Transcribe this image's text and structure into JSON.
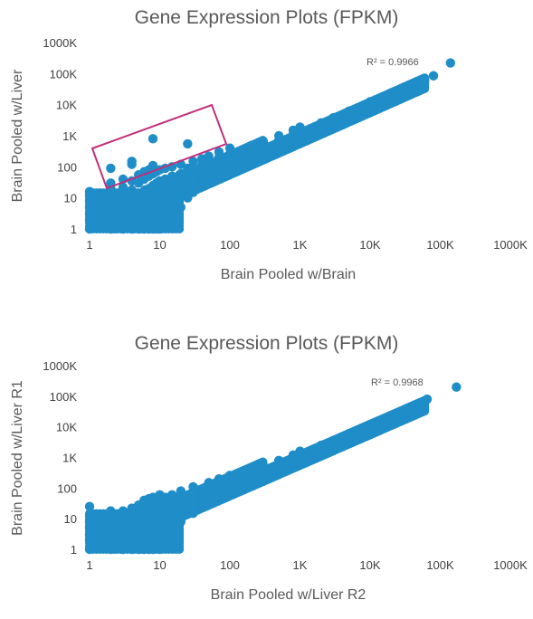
{
  "charts": [
    {
      "title": "Gene Expression Plots (FPKM)",
      "xlabel": "Brain Pooled  w/Brain",
      "ylabel": "Brain Pooled w/Liver",
      "r2_label": "R² = 0.9966",
      "x_ticks": [
        "1",
        "10",
        "100",
        "1K",
        "10K",
        "100K",
        "1000K"
      ],
      "y_ticks": [
        "1",
        "10",
        "100",
        "1K",
        "10K",
        "100K",
        "1000K"
      ]
    },
    {
      "title": "Gene Expression Plots (FPKM)",
      "xlabel": "Brain Pooled w/Liver R2",
      "ylabel": "Brain Pooled w/Liver R1",
      "r2_label": "R² = 0.9968",
      "x_ticks": [
        "1",
        "10",
        "100",
        "1K",
        "10K",
        "100K",
        "1000K"
      ],
      "y_ticks": [
        "1",
        "10",
        "100",
        "1K",
        "10K",
        "100K",
        "1000K"
      ]
    }
  ],
  "chart_data": [
    {
      "type": "scatter",
      "title": "Gene Expression Plots (FPKM)",
      "xlabel": "Brain Pooled  w/Brain",
      "ylabel": "Brain Pooled w/Liver",
      "x_scale": "log",
      "y_scale": "log",
      "xlim": [
        1,
        1000000
      ],
      "ylim": [
        1,
        1000000
      ],
      "grid": false,
      "legend": "none",
      "marker_color": "#1f8dc8",
      "annotation": "R² = 0.9966",
      "highlight_box_color": "#c0307a",
      "points": [
        [
          1,
          1
        ],
        [
          1,
          2
        ],
        [
          1,
          3
        ],
        [
          1,
          5
        ],
        [
          1,
          8
        ],
        [
          1,
          12
        ],
        [
          1,
          16
        ],
        [
          2,
          1
        ],
        [
          2,
          2
        ],
        [
          2,
          4
        ],
        [
          2,
          7
        ],
        [
          2,
          12
        ],
        [
          2,
          20
        ],
        [
          2,
          90
        ],
        [
          2,
          30
        ],
        [
          3,
          1
        ],
        [
          3,
          2
        ],
        [
          3,
          5
        ],
        [
          3,
          10
        ],
        [
          3,
          22
        ],
        [
          3,
          40
        ],
        [
          4,
          1
        ],
        [
          4,
          3
        ],
        [
          4,
          8
        ],
        [
          4,
          18
        ],
        [
          4,
          35
        ],
        [
          4,
          150
        ],
        [
          4,
          120
        ],
        [
          5,
          1
        ],
        [
          5,
          4
        ],
        [
          5,
          12
        ],
        [
          5,
          30
        ],
        [
          5,
          55
        ],
        [
          6,
          1
        ],
        [
          6,
          5
        ],
        [
          6,
          15
        ],
        [
          6,
          40
        ],
        [
          6,
          70
        ],
        [
          7,
          1
        ],
        [
          7,
          6
        ],
        [
          7,
          20
        ],
        [
          7,
          50
        ],
        [
          7,
          80
        ],
        [
          8,
          1
        ],
        [
          8,
          8
        ],
        [
          8,
          25
        ],
        [
          8,
          60
        ],
        [
          8,
          800
        ],
        [
          8,
          110
        ],
        [
          9,
          1
        ],
        [
          9,
          10
        ],
        [
          9,
          30
        ],
        [
          9,
          70
        ],
        [
          10,
          1
        ],
        [
          10,
          12
        ],
        [
          10,
          35
        ],
        [
          10,
          80
        ],
        [
          12,
          2
        ],
        [
          12,
          15
        ],
        [
          12,
          40
        ],
        [
          12,
          90
        ],
        [
          15,
          3
        ],
        [
          15,
          20
        ],
        [
          15,
          50
        ],
        [
          15,
          100
        ],
        [
          20,
          5
        ],
        [
          20,
          25
        ],
        [
          20,
          60
        ],
        [
          20,
          120
        ],
        [
          25,
          550
        ],
        [
          25,
          10
        ],
        [
          25,
          35
        ],
        [
          25,
          90
        ],
        [
          30,
          15
        ],
        [
          30,
          40
        ],
        [
          30,
          100
        ],
        [
          30,
          150
        ],
        [
          40,
          25
        ],
        [
          40,
          60
        ],
        [
          40,
          120
        ],
        [
          40,
          180
        ],
        [
          50,
          35
        ],
        [
          50,
          80
        ],
        [
          50,
          150
        ],
        [
          50,
          220
        ],
        [
          70,
          60
        ],
        [
          70,
          110
        ],
        [
          70,
          200
        ],
        [
          70,
          300
        ],
        [
          100,
          90
        ],
        [
          100,
          150
        ],
        [
          100,
          260
        ],
        [
          100,
          400
        ],
        [
          150,
          140
        ],
        [
          150,
          220
        ],
        [
          150,
          350
        ],
        [
          200,
          190
        ],
        [
          200,
          280
        ],
        [
          200,
          480
        ],
        [
          300,
          300
        ],
        [
          300,
          420
        ],
        [
          300,
          650
        ],
        [
          500,
          480
        ],
        [
          500,
          700
        ],
        [
          500,
          1000
        ],
        [
          800,
          750
        ],
        [
          800,
          1100
        ],
        [
          800,
          1500
        ],
        [
          1000,
          950
        ],
        [
          1000,
          1400
        ],
        [
          1000,
          1900
        ],
        [
          2000,
          1900
        ],
        [
          2000,
          2600
        ],
        [
          3000,
          2800
        ],
        [
          3000,
          3800
        ],
        [
          5000,
          4800
        ],
        [
          5000,
          6200
        ],
        [
          10000,
          9500
        ],
        [
          10000,
          12500
        ],
        [
          20000,
          19000
        ],
        [
          20000,
          24000
        ],
        [
          40000,
          38000
        ],
        [
          40000,
          46000
        ],
        [
          60000,
          60000
        ],
        [
          80000,
          85000
        ],
        [
          140000,
          220000
        ]
      ]
    },
    {
      "type": "scatter",
      "title": "Gene Expression Plots (FPKM)",
      "xlabel": "Brain Pooled w/Liver R2",
      "ylabel": "Brain Pooled w/Liver R1",
      "x_scale": "log",
      "y_scale": "log",
      "xlim": [
        1,
        1000000
      ],
      "ylim": [
        1,
        1000000
      ],
      "grid": false,
      "legend": "none",
      "marker_color": "#1f8dc8",
      "annotation": "R² = 0.9968",
      "points": [
        [
          1,
          1
        ],
        [
          1,
          2
        ],
        [
          1,
          3
        ],
        [
          1,
          5
        ],
        [
          1,
          8
        ],
        [
          1,
          12
        ],
        [
          1,
          25
        ],
        [
          2,
          1
        ],
        [
          2,
          2
        ],
        [
          2,
          4
        ],
        [
          2,
          7
        ],
        [
          2,
          12
        ],
        [
          2,
          18
        ],
        [
          3,
          1
        ],
        [
          3,
          2
        ],
        [
          3,
          5
        ],
        [
          3,
          10
        ],
        [
          3,
          18
        ],
        [
          4,
          1
        ],
        [
          4,
          3
        ],
        [
          4,
          8
        ],
        [
          4,
          14
        ],
        [
          4,
          22
        ],
        [
          5,
          1
        ],
        [
          5,
          4
        ],
        [
          5,
          10
        ],
        [
          5,
          18
        ],
        [
          5,
          28
        ],
        [
          6,
          1
        ],
        [
          6,
          5
        ],
        [
          6,
          12
        ],
        [
          6,
          25
        ],
        [
          6,
          40
        ],
        [
          7,
          1
        ],
        [
          7,
          6
        ],
        [
          7,
          15
        ],
        [
          7,
          30
        ],
        [
          7,
          45
        ],
        [
          8,
          1
        ],
        [
          8,
          7
        ],
        [
          8,
          18
        ],
        [
          8,
          35
        ],
        [
          8,
          50
        ],
        [
          10,
          1
        ],
        [
          10,
          9
        ],
        [
          10,
          22
        ],
        [
          10,
          40
        ],
        [
          10,
          60
        ],
        [
          12,
          2
        ],
        [
          12,
          12
        ],
        [
          12,
          28
        ],
        [
          12,
          50
        ],
        [
          15,
          5
        ],
        [
          15,
          15
        ],
        [
          15,
          35
        ],
        [
          15,
          60
        ],
        [
          20,
          8
        ],
        [
          20,
          20
        ],
        [
          20,
          45
        ],
        [
          20,
          80
        ],
        [
          30,
          15
        ],
        [
          30,
          30
        ],
        [
          30,
          60
        ],
        [
          30,
          110
        ],
        [
          50,
          35
        ],
        [
          50,
          55
        ],
        [
          50,
          90
        ],
        [
          50,
          150
        ],
        [
          70,
          55
        ],
        [
          70,
          80
        ],
        [
          70,
          130
        ],
        [
          70,
          200
        ],
        [
          100,
          85
        ],
        [
          100,
          120
        ],
        [
          100,
          180
        ],
        [
          100,
          260
        ],
        [
          150,
          140
        ],
        [
          150,
          190
        ],
        [
          150,
          270
        ],
        [
          200,
          190
        ],
        [
          200,
          250
        ],
        [
          200,
          350
        ],
        [
          300,
          290
        ],
        [
          300,
          380
        ],
        [
          300,
          500
        ],
        [
          500,
          480
        ],
        [
          500,
          620
        ],
        [
          500,
          800
        ],
        [
          800,
          780
        ],
        [
          800,
          950
        ],
        [
          800,
          1200
        ],
        [
          1000,
          980
        ],
        [
          1000,
          1250
        ],
        [
          1000,
          1600
        ],
        [
          2000,
          1950
        ],
        [
          2000,
          2500
        ],
        [
          3000,
          2900
        ],
        [
          3000,
          3600
        ],
        [
          5000,
          4900
        ],
        [
          5000,
          6000
        ],
        [
          10000,
          9800
        ],
        [
          10000,
          12000
        ],
        [
          20000,
          19500
        ],
        [
          20000,
          23500
        ],
        [
          40000,
          39000
        ],
        [
          40000,
          46000
        ],
        [
          60000,
          62000
        ],
        [
          65000,
          80000
        ],
        [
          170000,
          200000
        ]
      ]
    }
  ]
}
